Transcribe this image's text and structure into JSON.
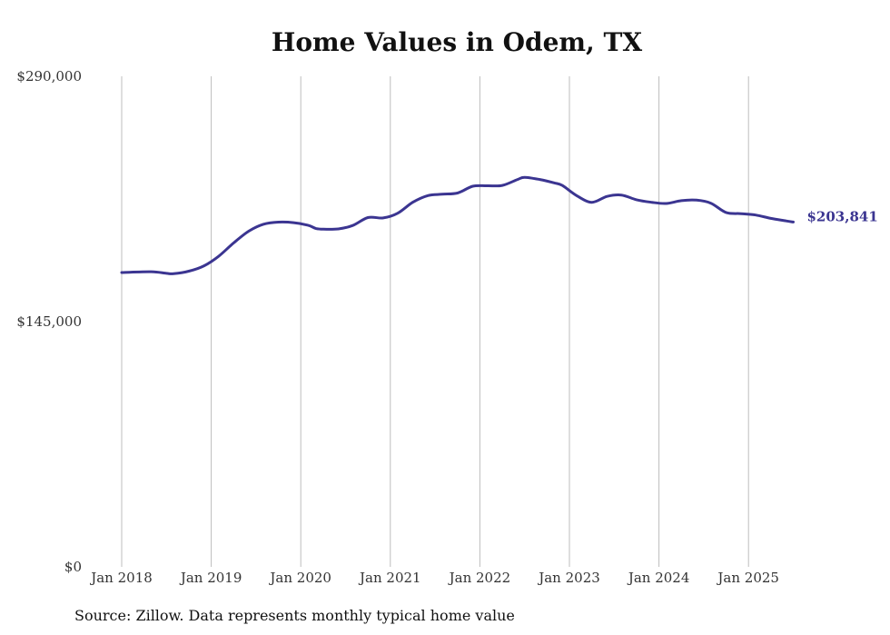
{
  "chart_data": {
    "type": "line",
    "title": "Home Values in Odem, TX",
    "xlabel": "",
    "ylabel": "",
    "ylim": [
      0,
      290000
    ],
    "y_ticks": [
      {
        "value": 0,
        "label": "$0"
      },
      {
        "value": 145000,
        "label": "$145,000"
      },
      {
        "value": 290000,
        "label": "$290,000"
      }
    ],
    "x_ticks": [
      "Jan 2018",
      "Jan 2019",
      "Jan 2020",
      "Jan 2021",
      "Jan 2022",
      "Jan 2023",
      "Jan 2024",
      "Jan 2025"
    ],
    "grid": "vertical",
    "line_color": "#3b3591",
    "series": [
      {
        "values": [
          [
            2018.0,
            174000
          ],
          [
            2018.33,
            174500
          ],
          [
            2018.5,
            173500
          ],
          [
            2018.58,
            173300
          ],
          [
            2018.75,
            174800
          ],
          [
            2018.92,
            178000
          ],
          [
            2019.08,
            183500
          ],
          [
            2019.25,
            191500
          ],
          [
            2019.42,
            198500
          ],
          [
            2019.58,
            202500
          ],
          [
            2019.75,
            203800
          ],
          [
            2019.92,
            203500
          ],
          [
            2020.08,
            202000
          ],
          [
            2020.17,
            200000
          ],
          [
            2020.25,
            199600
          ],
          [
            2020.42,
            199800
          ],
          [
            2020.58,
            201800
          ],
          [
            2020.75,
            206500
          ],
          [
            2020.92,
            206300
          ],
          [
            2021.08,
            209000
          ],
          [
            2021.25,
            215500
          ],
          [
            2021.42,
            219500
          ],
          [
            2021.58,
            220300
          ],
          [
            2021.75,
            221000
          ],
          [
            2021.92,
            225000
          ],
          [
            2022.08,
            225300
          ],
          [
            2022.25,
            225500
          ],
          [
            2022.42,
            229000
          ],
          [
            2022.5,
            230300
          ],
          [
            2022.67,
            229000
          ],
          [
            2022.83,
            227000
          ],
          [
            2022.92,
            225500
          ],
          [
            2023.08,
            219500
          ],
          [
            2023.25,
            215500
          ],
          [
            2023.42,
            219000
          ],
          [
            2023.58,
            219800
          ],
          [
            2023.75,
            217000
          ],
          [
            2023.92,
            215500
          ],
          [
            2024.08,
            214800
          ],
          [
            2024.25,
            216500
          ],
          [
            2024.42,
            216800
          ],
          [
            2024.58,
            215000
          ],
          [
            2024.75,
            209500
          ],
          [
            2024.92,
            208800
          ],
          [
            2025.08,
            208000
          ],
          [
            2025.25,
            206000
          ],
          [
            2025.42,
            204500
          ],
          [
            2025.5,
            203841
          ]
        ]
      }
    ],
    "end_label": "$203,841"
  },
  "source_text": "Source: Zillow. Data represents monthly typical home value"
}
